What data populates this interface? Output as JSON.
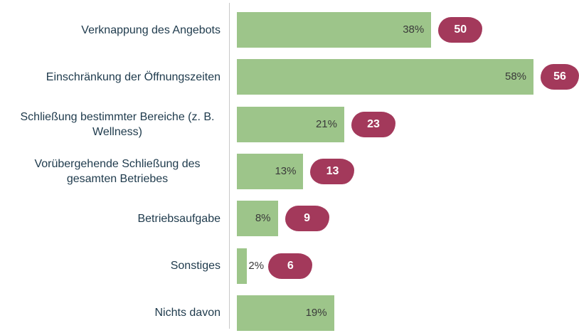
{
  "chart_data": {
    "type": "bar",
    "orientation": "horizontal",
    "categories": [
      "Verknappung des Angebots",
      "Einschränkung der Öffnungszeiten",
      "Schließung bestimmter Bereiche (z. B. Wellness)",
      "Vorübergehende Schließung des gesamten Betriebes",
      "Betriebsaufgabe",
      "Sonstiges",
      "Nichts davon"
    ],
    "values": [
      38,
      58,
      21,
      13,
      8,
      2,
      19
    ],
    "value_labels": [
      "38%",
      "58%",
      "21%",
      "13%",
      "8%",
      "2%",
      "19%"
    ],
    "badges": [
      50,
      56,
      23,
      13,
      9,
      6,
      null
    ],
    "color": "#9dc58a",
    "badge_color": "#a3395b"
  }
}
